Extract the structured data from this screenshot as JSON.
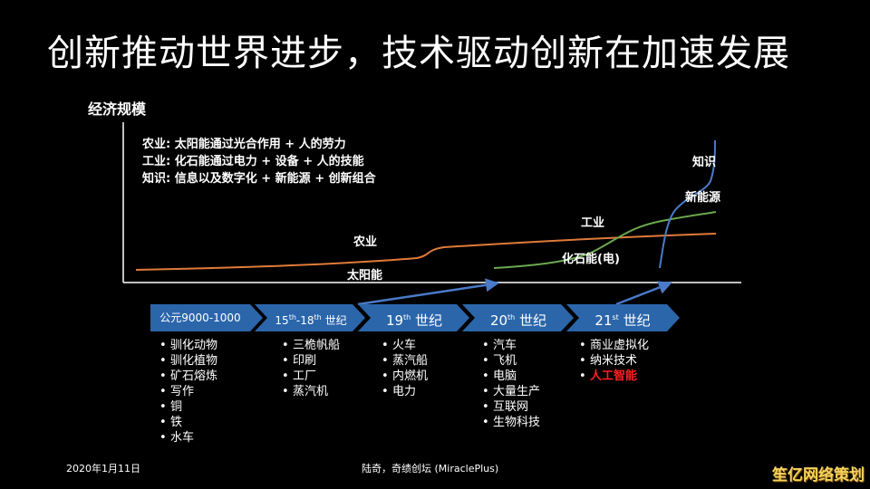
{
  "title": "创新推动世界进步，技术驱动创新在加速发展",
  "chart": {
    "ylabel": "经济规模",
    "legend": [
      "农业: 太阳能通过光合作用 + 人的劳力",
      "工业: 化石能通过电力 + 设备 + 人的技能",
      "知识: 信息以及数字化 + 新能源 + 创新组合"
    ],
    "curve_labels": {
      "agriculture": "农业",
      "solar": "太阳能",
      "industry": "工业",
      "fossil": "化石能(电)",
      "knowledge": "知识",
      "new_energy": "新能源"
    },
    "colors": {
      "agriculture": "#e07b39",
      "industry": "#6aa84f",
      "knowledge": "#4a7ac8",
      "stage": "#2b66ab"
    }
  },
  "stages": [
    {
      "base": "公元9000-1000",
      "sup": "",
      "suffix": ""
    },
    {
      "base": "15",
      "sup": "th",
      "suffix": "-18",
      "sup2": "th",
      "suffix2": " 世纪"
    },
    {
      "base": "19",
      "sup": "th",
      "suffix": " 世纪"
    },
    {
      "base": "20",
      "sup": "th",
      "suffix": " 世纪"
    },
    {
      "base": "21",
      "sup": "st",
      "suffix": " 世纪"
    }
  ],
  "items": [
    [
      "驯化动物",
      "驯化植物",
      "矿石熔炼",
      "写作",
      "铜",
      "铁",
      "水车"
    ],
    [
      "三桅帆船",
      "印刷",
      "工厂",
      "蒸汽机"
    ],
    [
      "火车",
      "蒸汽船",
      "内燃机",
      "电力"
    ],
    [
      "汽车",
      "飞机",
      "电脑",
      "大量生产",
      "互联网",
      "生物科技"
    ],
    [
      "商业虚拟化",
      "纳米技术",
      "人工智能"
    ]
  ],
  "footer": {
    "date": "2020年1月11日",
    "author": "陆奇，奇绩创坛 (MiraclePlus)"
  },
  "watermark": "笙亿网络策划"
}
